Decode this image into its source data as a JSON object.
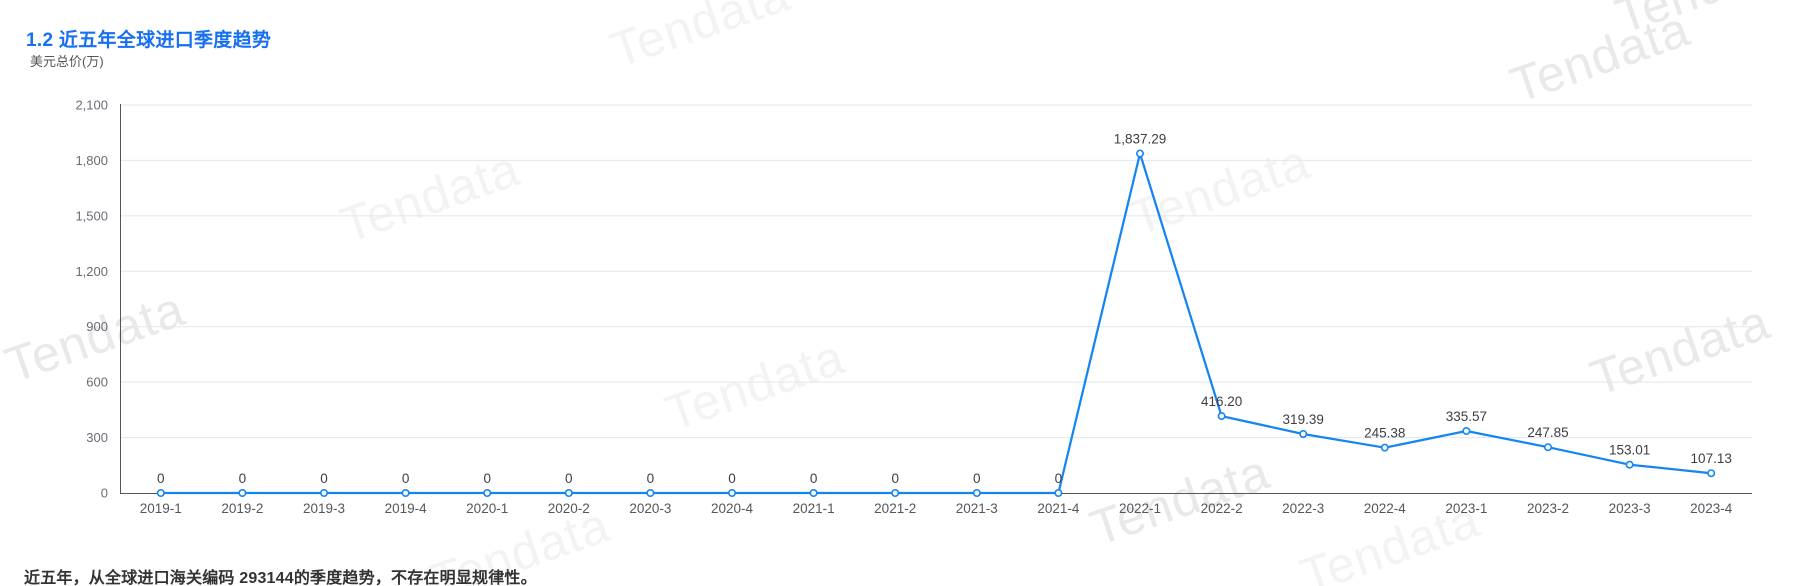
{
  "header": {
    "section_title": "1.2 近五年全球进口季度趋势"
  },
  "chart": {
    "unit_label": "美元总价(万)"
  },
  "summary": {
    "text": "近五年，从全球进口海关编码 293144的季度趋势，不存在明显规律性。"
  },
  "watermark": {
    "text": "Tendata"
  },
  "colors": {
    "title_blue": "#1670f1",
    "line_blue": "#1585f2",
    "axis_gray": "#555555",
    "grid_gray": "#e0e7ee",
    "y_tick_gray": "#6b6b76",
    "x_label_gray": "#55555e",
    "data_label_dark": "#3d3d44",
    "watermark_light": "#f3f3f3",
    "watermark_medium": "#e9e9e9"
  },
  "chart_data": {
    "type": "line",
    "title": "1.2 近五年全球进口季度趋势",
    "ylabel": "美元总价(万)",
    "xlabel": "",
    "categories": [
      "2019-1",
      "2019-2",
      "2019-3",
      "2019-4",
      "2020-1",
      "2020-2",
      "2020-3",
      "2020-4",
      "2021-1",
      "2021-2",
      "2021-3",
      "2021-4",
      "2022-1",
      "2022-2",
      "2022-3",
      "2022-4",
      "2023-1",
      "2023-2",
      "2023-3",
      "2023-4"
    ],
    "values": [
      0,
      0,
      0,
      0,
      0,
      0,
      0,
      0,
      0,
      0,
      0,
      0,
      1837.29,
      416.2,
      319.39,
      245.38,
      335.57,
      247.85,
      153.01,
      107.13
    ],
    "point_labels": [
      "0",
      "0",
      "0",
      "0",
      "0",
      "0",
      "0",
      "0",
      "0",
      "0",
      "0",
      "0",
      "1,837.29",
      "416.20",
      "319.39",
      "245.38",
      "335.57",
      "247.85",
      "153.01",
      "107.13"
    ],
    "y_tick_values": [
      0,
      300,
      600,
      900,
      1200,
      1500,
      1800,
      2100
    ],
    "y_tick_labels": [
      "0",
      "300",
      "600",
      "900",
      "1,200",
      "1,500",
      "1,800",
      "2,100"
    ],
    "ylim": [
      0,
      2100
    ],
    "grid": true,
    "legend": "none",
    "marker": "open-circle"
  }
}
